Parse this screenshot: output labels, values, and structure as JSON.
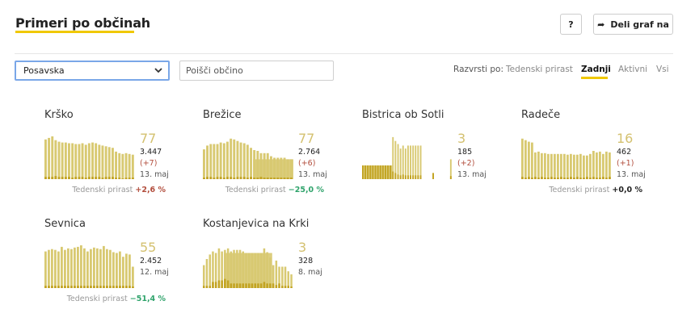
{
  "header": {
    "title": "Primeri po občinah",
    "help_label": "?",
    "share_label": "Deli graf na",
    "share_icon": "share-arrow-icon"
  },
  "filters": {
    "region_select": "Posavska",
    "search_placeholder": "Poišči občino",
    "sort_label": "Razvrsti po:",
    "sort_options": [
      "Tedenski prirast",
      "Zadnji",
      "Aktivni",
      "Vsi"
    ],
    "sort_active": "Zadnji"
  },
  "colors": {
    "bar": "#d8c971",
    "bar_dark": "#c2a321",
    "accent": "#f0c800",
    "up": "#b24d3c",
    "down": "#2fa36b"
  },
  "weekly_label": "Tedenski prirast",
  "municipalities": [
    {
      "name": "Krško",
      "active": "77",
      "total": "3.447",
      "delta": "(+7)",
      "date": "13. maj",
      "weekly": "+2,6 %",
      "trend": "up",
      "bars": [
        52,
        54,
        56,
        51,
        49,
        48,
        48,
        47,
        47,
        46,
        46,
        47,
        45,
        47,
        48,
        47,
        45,
        44,
        43,
        42,
        41,
        36,
        34,
        33,
        34,
        33,
        32
      ],
      "dark": [
        3,
        3,
        3,
        4,
        3,
        3,
        3,
        3,
        2,
        3,
        3,
        3,
        2,
        3,
        3,
        3,
        3,
        2,
        3,
        3,
        3,
        2,
        2,
        1,
        2,
        2,
        2
      ]
    },
    {
      "name": "Brežice",
      "active": "77",
      "total": "2.764",
      "delta": "(+6)",
      "date": "13. maj",
      "weekly": "−25,0 %",
      "trend": "down",
      "bars": [
        39,
        44,
        46,
        46,
        46,
        48,
        47,
        49,
        53,
        52,
        50,
        48,
        47,
        45,
        41,
        38,
        37,
        34,
        34,
        34,
        30,
        28,
        28,
        28,
        28,
        26,
        26
      ],
      "dark": [
        2,
        3,
        3,
        2,
        3,
        3,
        2,
        3,
        3,
        2,
        3,
        3,
        3,
        2,
        3,
        2,
        2,
        3,
        2,
        2,
        2,
        2,
        2,
        2,
        2,
        2,
        2
      ],
      "block": {
        "from": 15,
        "to": 26,
        "value": 26
      }
    },
    {
      "name": "Bistrica ob Sotli",
      "active": "3",
      "total": "185",
      "delta": "(+2)",
      "date": "13. maj",
      "weekly": "",
      "trend": "flat",
      "bars": [
        18,
        18,
        18,
        18,
        18,
        18,
        18,
        18,
        18,
        18,
        18,
        18,
        55,
        50,
        46,
        40,
        44,
        40,
        44,
        44,
        44,
        44,
        44,
        44,
        0,
        0,
        0,
        0,
        8,
        0,
        0,
        0,
        0,
        0,
        0,
        26
      ],
      "dark": [
        18,
        18,
        18,
        18,
        18,
        18,
        18,
        18,
        18,
        18,
        18,
        18,
        10,
        8,
        6,
        5,
        6,
        5,
        5,
        5,
        5,
        5,
        5,
        5,
        0,
        0,
        0,
        0,
        8,
        0,
        0,
        0,
        0,
        0,
        0,
        4
      ],
      "block": {
        "from": 0,
        "to": 11,
        "value": 18
      }
    },
    {
      "name": "Radeče",
      "active": "16",
      "total": "462",
      "delta": "(+1)",
      "date": "13. maj",
      "weekly": "+0,0 %",
      "trend": "flat",
      "bars": [
        53,
        51,
        49,
        48,
        35,
        36,
        34,
        34,
        33,
        33,
        33,
        33,
        33,
        33,
        32,
        33,
        32,
        32,
        33,
        31,
        31,
        33,
        37,
        35,
        36,
        33,
        36,
        35
      ],
      "dark": [
        3,
        2,
        3,
        2,
        3,
        2,
        3,
        2,
        2,
        3,
        2,
        2,
        3,
        2,
        2,
        3,
        2,
        3,
        2,
        2,
        3,
        2,
        3,
        2,
        2,
        3,
        2,
        3
      ]
    },
    {
      "name": "Sevnica",
      "active": "55",
      "total": "2.452",
      "delta": "",
      "date": "12. maj",
      "weekly": "−51,4 %",
      "trend": "down",
      "bars": [
        48,
        50,
        51,
        50,
        48,
        54,
        50,
        52,
        51,
        53,
        54,
        56,
        52,
        48,
        51,
        53,
        52,
        51,
        55,
        51,
        50,
        47,
        46,
        48,
        41,
        45,
        44,
        28
      ],
      "dark": [
        3,
        3,
        3,
        3,
        3,
        3,
        3,
        3,
        3,
        3,
        3,
        3,
        3,
        3,
        3,
        3,
        3,
        3,
        3,
        3,
        3,
        3,
        3,
        3,
        3,
        3,
        3,
        2
      ]
    },
    {
      "name": "Kostanjevica na Krki",
      "active": "3",
      "total": "328",
      "delta": "",
      "date": "8. maj",
      "weekly": "",
      "trend": "flat",
      "bars": [
        30,
        38,
        44,
        48,
        46,
        52,
        48,
        50,
        52,
        48,
        50,
        50,
        50,
        48,
        46,
        46,
        46,
        46,
        46,
        46,
        52,
        47,
        40,
        30,
        36,
        28,
        28,
        28,
        22,
        18
      ],
      "dark": [
        3,
        3,
        3,
        8,
        8,
        10,
        10,
        12,
        10,
        6,
        6,
        6,
        6,
        6,
        6,
        6,
        6,
        6,
        6,
        6,
        8,
        6,
        6,
        6,
        4,
        6,
        3,
        3,
        3,
        2
      ],
      "block": {
        "from": 7,
        "to": 22,
        "value": 46
      }
    }
  ]
}
